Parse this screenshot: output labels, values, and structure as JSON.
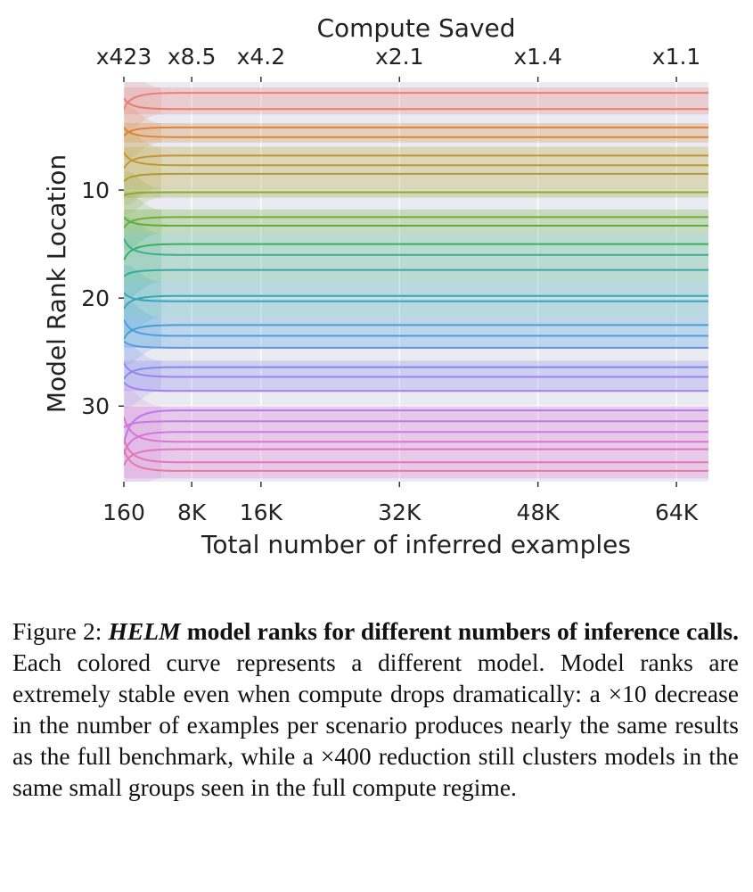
{
  "chart_data": {
    "type": "line",
    "title": "",
    "xlabel": "Total number of inferred examples",
    "ylabel": "Model Rank Location",
    "top_axis_label": "Compute Saved",
    "x_ticks": [
      {
        "value": 160,
        "label": "160"
      },
      {
        "value": 8000,
        "label": "8K"
      },
      {
        "value": 16000,
        "label": "16K"
      },
      {
        "value": 32000,
        "label": "32K"
      },
      {
        "value": 48000,
        "label": "48K"
      },
      {
        "value": 64000,
        "label": "64K"
      }
    ],
    "top_ticks": [
      {
        "value": 160,
        "label": "x423"
      },
      {
        "value": 8000,
        "label": "x8.5"
      },
      {
        "value": 16000,
        "label": "x4.2"
      },
      {
        "value": 32000,
        "label": "x2.1"
      },
      {
        "value": 48000,
        "label": "x1.4"
      },
      {
        "value": 64000,
        "label": "x1.1"
      }
    ],
    "y_ticks": [
      10,
      20,
      30
    ],
    "xlim": [
      160,
      67700
    ],
    "ylim": [
      37,
      0
    ],
    "grid": true,
    "colors": [
      "#e8807a",
      "#e0803e",
      "#c9933a",
      "#b09c30",
      "#98a431",
      "#74ab39",
      "#3fb055",
      "#38b08c",
      "#36ab9d",
      "#38a8ad",
      "#3ba3bf",
      "#4a9de0",
      "#7b8eee",
      "#9b84ef",
      "#b77bee",
      "#d376df",
      "#e374c5",
      "#e7799d"
    ],
    "bands": [
      {
        "ymin": 0.5,
        "ymax": 3.0,
        "color": "#e8807a"
      },
      {
        "ymin": 3.8,
        "ymax": 5.6,
        "color": "#d98c3f"
      },
      {
        "ymin": 6.0,
        "ymax": 9.8,
        "color": "#b8a02e"
      },
      {
        "ymin": 9.8,
        "ymax": 10.7,
        "color": "#88a831"
      },
      {
        "ymin": 11.8,
        "ymax": 14.0,
        "color": "#6cb036"
      },
      {
        "ymin": 14.0,
        "ymax": 18.5,
        "color": "#3fb080"
      },
      {
        "ymin": 18.5,
        "ymax": 21.8,
        "color": "#39aab2"
      },
      {
        "ymin": 21.8,
        "ymax": 24.6,
        "color": "#4a9de0"
      },
      {
        "ymin": 25.8,
        "ymax": 28.6,
        "color": "#8d8aee"
      },
      {
        "ymin": 30.0,
        "ymax": 36.7,
        "color": "#d778d8"
      }
    ],
    "series": [
      {
        "final_rank": 1,
        "start_rank": 2.5,
        "color": "#e8807a"
      },
      {
        "final_rank": 2.5,
        "start_rank": 1.5,
        "color": "#e37f6a"
      },
      {
        "final_rank": 4.2,
        "start_rank": 5.0,
        "color": "#e0803e"
      },
      {
        "final_rank": 5.1,
        "start_rank": 4.2,
        "color": "#d68838"
      },
      {
        "final_rank": 6.8,
        "start_rank": 8.0,
        "color": "#c9933a"
      },
      {
        "final_rank": 7.7,
        "start_rank": 6.5,
        "color": "#bf9833"
      },
      {
        "final_rank": 8.5,
        "start_rank": 9.2,
        "color": "#b09c30"
      },
      {
        "final_rank": 10.2,
        "start_rank": 10.5,
        "color": "#98a431"
      },
      {
        "final_rank": 12.5,
        "start_rank": 13.5,
        "color": "#74ab39"
      },
      {
        "final_rank": 13.3,
        "start_rank": 12.5,
        "color": "#5aae3e"
      },
      {
        "final_rank": 15.0,
        "start_rank": 16.5,
        "color": "#3fb055"
      },
      {
        "final_rank": 16.0,
        "start_rank": 14.5,
        "color": "#38b08c"
      },
      {
        "final_rank": 17.4,
        "start_rank": 18.0,
        "color": "#36ab9d"
      },
      {
        "final_rank": 19.8,
        "start_rank": 21.0,
        "color": "#38a8ad"
      },
      {
        "final_rank": 20.3,
        "start_rank": 19.5,
        "color": "#3ba3bf"
      },
      {
        "final_rank": 22.5,
        "start_rank": 23.8,
        "color": "#43a0d2"
      },
      {
        "final_rank": 23.5,
        "start_rank": 22.0,
        "color": "#4a9de0"
      },
      {
        "final_rank": 24.6,
        "start_rank": 24.0,
        "color": "#5c96ea"
      },
      {
        "final_rank": 26.4,
        "start_rank": 27.5,
        "color": "#7b8eee"
      },
      {
        "final_rank": 27.3,
        "start_rank": 26.0,
        "color": "#9b84ef"
      },
      {
        "final_rank": 28.6,
        "start_rank": 27.8,
        "color": "#a77fee"
      },
      {
        "final_rank": 30.4,
        "start_rank": 33.5,
        "color": "#b77bee"
      },
      {
        "final_rank": 31.4,
        "start_rank": 32.0,
        "color": "#c577e6"
      },
      {
        "final_rank": 32.4,
        "start_rank": 34.5,
        "color": "#d376df"
      },
      {
        "final_rank": 33.3,
        "start_rank": 31.0,
        "color": "#dd74d0"
      },
      {
        "final_rank": 34.0,
        "start_rank": 35.5,
        "color": "#e374c5"
      },
      {
        "final_rank": 35.2,
        "start_rank": 33.0,
        "color": "#e676b2"
      },
      {
        "final_rank": 36.0,
        "start_rank": 34.0,
        "color": "#e7799d"
      }
    ]
  },
  "caption": {
    "figure_label": "Figure 2: ",
    "title_italic": "HELM",
    "title_bold": " model ranks for different numbers of inference calls.",
    "body": " Each colored curve represents a different model. Model ranks are extremely stable even when compute drops dramatically: a ×10 decrease in the number of examples per scenario produces nearly the same results as the full benchmark, while a ×400 reduction still clusters models in the same small groups seen in the full compute regime."
  }
}
